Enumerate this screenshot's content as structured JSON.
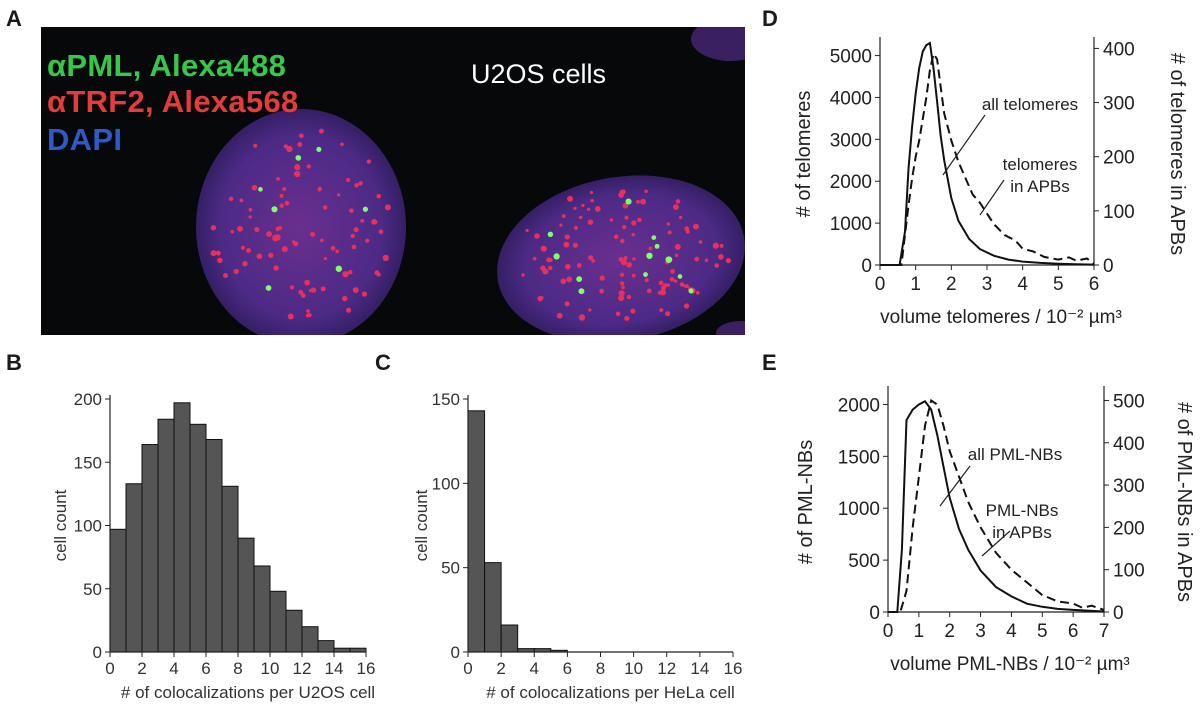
{
  "panels": {
    "a": {
      "letter": "A",
      "stain_lines": [
        {
          "text": "αPML, Alexa488",
          "color": "#35c84a"
        },
        {
          "text": "αTRF2, Alexa568",
          "color": "#e63b3b"
        },
        {
          "text": "DAPI",
          "color": "#2f59c8"
        }
      ],
      "title": "U2OS cells"
    },
    "b": {
      "letter": "B"
    },
    "c": {
      "letter": "C"
    },
    "d": {
      "letter": "D"
    },
    "e": {
      "letter": "E"
    }
  },
  "chart_data": [
    {
      "panel": "B",
      "type": "bar",
      "histogram": true,
      "categories": [
        "0",
        "1",
        "2",
        "3",
        "4",
        "5",
        "6",
        "7",
        "8",
        "9",
        "10",
        "11",
        "12",
        "13",
        "14",
        "15"
      ],
      "values": [
        97,
        133,
        164,
        184,
        197,
        180,
        168,
        131,
        90,
        68,
        48,
        33,
        20,
        9,
        3,
        3
      ],
      "xlabel": "# of colocalizations per U2OS cell",
      "ylabel": "cell count",
      "xlim": [
        0,
        16
      ],
      "ylim": [
        0,
        200
      ],
      "xticks": [
        0,
        2,
        4,
        6,
        8,
        10,
        12,
        14,
        16
      ],
      "yticks": [
        0,
        50,
        100,
        150,
        200
      ],
      "bar_color": "#555555",
      "grid": false
    },
    {
      "panel": "C",
      "type": "bar",
      "histogram": true,
      "categories": [
        "0",
        "1",
        "2",
        "3",
        "4",
        "5",
        "6",
        "7",
        "8",
        "9",
        "10",
        "11",
        "12",
        "13",
        "14",
        "15"
      ],
      "values": [
        143,
        53,
        16,
        2,
        2,
        1,
        0,
        0,
        0,
        0,
        0,
        0,
        0,
        0,
        0,
        0
      ],
      "xlabel": "# of colocalizations per HeLa cell",
      "ylabel": "cell count",
      "xlim": [
        0,
        16
      ],
      "ylim": [
        0,
        150
      ],
      "xticks": [
        0,
        2,
        4,
        6,
        8,
        10,
        12,
        14,
        16
      ],
      "yticks": [
        0,
        50,
        100,
        150
      ],
      "bar_color": "#555555",
      "grid": false
    },
    {
      "panel": "D",
      "type": "line",
      "xlabel": "volume telomeres / 10⁻² µm³",
      "ylabel": "# of telomeres",
      "ylabel_right": "# of telomeres in APBs",
      "xlim": [
        0,
        6
      ],
      "ylim": [
        0,
        5300
      ],
      "ylim_right": [
        0,
        410
      ],
      "xticks": [
        0,
        1,
        2,
        3,
        4,
        5,
        6
      ],
      "yticks": [
        0,
        1000,
        2000,
        3000,
        4000,
        5000
      ],
      "yticks_right": [
        0,
        100,
        200,
        300,
        400
      ],
      "annotations": [
        "all telomeres",
        "telomeres",
        "in APBs"
      ],
      "grid": false,
      "series": [
        {
          "axis": "left",
          "dash": false,
          "x": [
            0,
            0.55,
            0.7,
            0.8,
            0.9,
            1.0,
            1.1,
            1.2,
            1.3,
            1.4,
            1.5,
            1.6,
            1.7,
            1.8,
            2.0,
            2.2,
            2.5,
            2.8,
            3.2,
            3.6,
            4.0,
            4.5,
            5.0,
            5.5,
            6.0
          ],
          "y": [
            0,
            0,
            800,
            2300,
            3300,
            4100,
            4700,
            5100,
            5250,
            5300,
            4700,
            3900,
            3100,
            2500,
            1600,
            1050,
            620,
            380,
            220,
            130,
            80,
            50,
            30,
            20,
            10
          ]
        },
        {
          "axis": "right",
          "dash": true,
          "x": [
            0,
            0.6,
            0.8,
            0.9,
            1.0,
            1.1,
            1.2,
            1.3,
            1.4,
            1.5,
            1.6,
            1.7,
            1.8,
            2.0,
            2.2,
            2.4,
            2.6,
            2.8,
            3.0,
            3.2,
            3.5,
            3.8,
            4.0,
            4.3,
            4.6,
            5.0,
            5.3,
            5.5,
            5.8,
            6.0
          ],
          "y": [
            0,
            0,
            110,
            160,
            200,
            230,
            270,
            310,
            360,
            390,
            380,
            330,
            280,
            230,
            190,
            160,
            130,
            115,
            95,
            75,
            55,
            45,
            30,
            25,
            15,
            10,
            14,
            8,
            12,
            3
          ]
        }
      ]
    },
    {
      "panel": "E",
      "type": "line",
      "xlabel": "volume PML-NBs / 10⁻² µm³",
      "ylabel": "# of PML-NBs",
      "ylabel_right": "# of PML-NBs in APBs",
      "xlim": [
        0,
        7
      ],
      "ylim": [
        0,
        2120
      ],
      "ylim_right": [
        0,
        520
      ],
      "xticks": [
        0,
        1,
        2,
        3,
        4,
        5,
        6,
        7
      ],
      "yticks": [
        0,
        500,
        1000,
        1500,
        2000
      ],
      "yticks_right": [
        0,
        100,
        200,
        300,
        400,
        500
      ],
      "annotations": [
        "all PML-NBs",
        "PML-NBs",
        "in APBs"
      ],
      "grid": false,
      "series": [
        {
          "axis": "left",
          "dash": false,
          "x": [
            0,
            0.3,
            0.45,
            0.6,
            0.8,
            1.0,
            1.2,
            1.4,
            1.6,
            1.8,
            2.0,
            2.3,
            2.6,
            3.0,
            3.5,
            4.0,
            4.5,
            5.0,
            5.5,
            6.0,
            7.0
          ],
          "y": [
            0,
            0,
            600,
            1850,
            1950,
            2000,
            2030,
            1950,
            1700,
            1400,
            1100,
            800,
            600,
            400,
            240,
            150,
            80,
            50,
            30,
            20,
            5
          ]
        },
        {
          "axis": "right",
          "dash": true,
          "x": [
            0,
            0.4,
            0.6,
            0.8,
            1.0,
            1.2,
            1.4,
            1.6,
            1.8,
            2.0,
            2.3,
            2.6,
            3.0,
            3.5,
            4.0,
            4.5,
            5.0,
            5.5,
            6.0,
            6.3,
            6.6,
            7.0
          ],
          "y": [
            0,
            0,
            50,
            200,
            320,
            440,
            500,
            490,
            440,
            380,
            320,
            260,
            200,
            140,
            100,
            70,
            40,
            25,
            20,
            10,
            15,
            5
          ]
        }
      ]
    }
  ]
}
